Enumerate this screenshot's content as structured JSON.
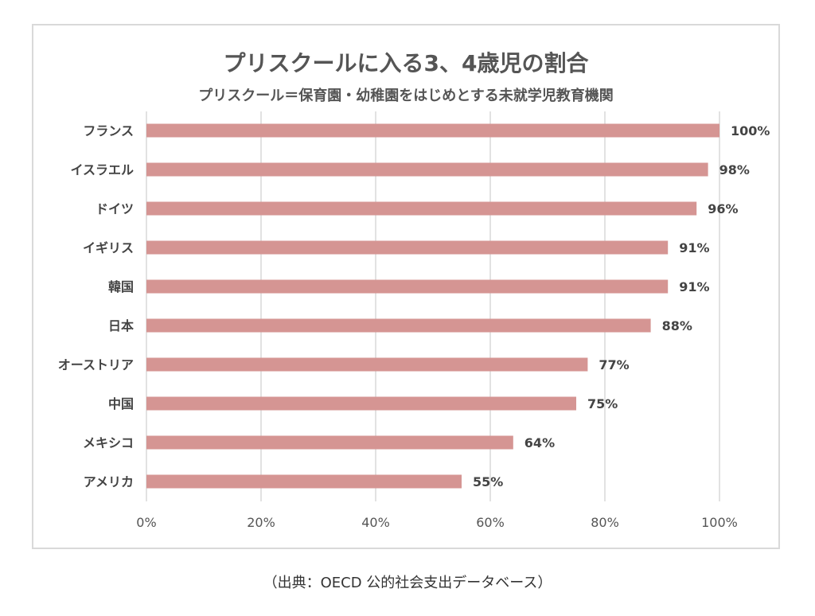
{
  "chart_data": {
    "type": "bar",
    "orientation": "horizontal",
    "title": "プリスクールに入る3、4歳児の割合",
    "subtitle": "プリスクール＝保育園・幼稚園をはじめとする未就学児教育機関",
    "categories": [
      "フランス",
      "イスラエル",
      "ドイツ",
      "イギリス",
      "韓国",
      "日本",
      "オーストリア",
      "中国",
      "メキシコ",
      "アメリカ"
    ],
    "values": [
      100,
      98,
      96,
      91,
      91,
      88,
      77,
      75,
      64,
      55
    ],
    "value_labels": [
      "100%",
      "98%",
      "96%",
      "91%",
      "91%",
      "88%",
      "77%",
      "75%",
      "64%",
      "55%"
    ],
    "xticks": [
      "0%",
      "20%",
      "40%",
      "60%",
      "80%",
      "100%"
    ],
    "xlim": [
      0,
      100
    ],
    "grid": true,
    "bar_color": "#d59593",
    "xlabel": "",
    "ylabel": ""
  },
  "source_note": "（出典：OECD 公的社会支出データベース）"
}
